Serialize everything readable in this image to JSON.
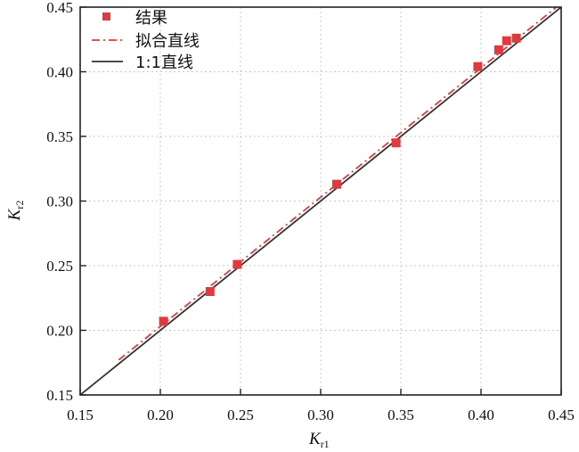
{
  "chart_data": {
    "type": "scatter",
    "xlabel": {
      "main": "K",
      "sub": "r1"
    },
    "ylabel": {
      "main": "K",
      "sub": "r2"
    },
    "xlim": [
      0.15,
      0.45
    ],
    "ylim": [
      0.15,
      0.45
    ],
    "x_ticks": [
      "0.15",
      "0.20",
      "0.25",
      "0.30",
      "0.35",
      "0.40",
      "0.45"
    ],
    "y_ticks": [
      "0.15",
      "0.20",
      "0.25",
      "0.30",
      "0.35",
      "0.40",
      "0.45"
    ],
    "grid": true,
    "legend_position": "top-left",
    "series": [
      {
        "name": "结果",
        "kind": "markers",
        "color": "#e03a3e",
        "points": [
          [
            0.202,
            0.207
          ],
          [
            0.231,
            0.23
          ],
          [
            0.248,
            0.251
          ],
          [
            0.31,
            0.313
          ],
          [
            0.347,
            0.345
          ],
          [
            0.398,
            0.404
          ],
          [
            0.411,
            0.417
          ],
          [
            0.416,
            0.424
          ],
          [
            0.422,
            0.426
          ]
        ]
      },
      {
        "name": "拟合直线",
        "kind": "dash-dot-line",
        "color": "#e03a3e",
        "points": [
          [
            0.174,
            0.177
          ],
          [
            0.45,
            0.453
          ]
        ]
      },
      {
        "name": "1:1直线",
        "kind": "solid-line",
        "color": "#333333",
        "points": [
          [
            0.15,
            0.15
          ],
          [
            0.45,
            0.45
          ]
        ]
      }
    ]
  }
}
